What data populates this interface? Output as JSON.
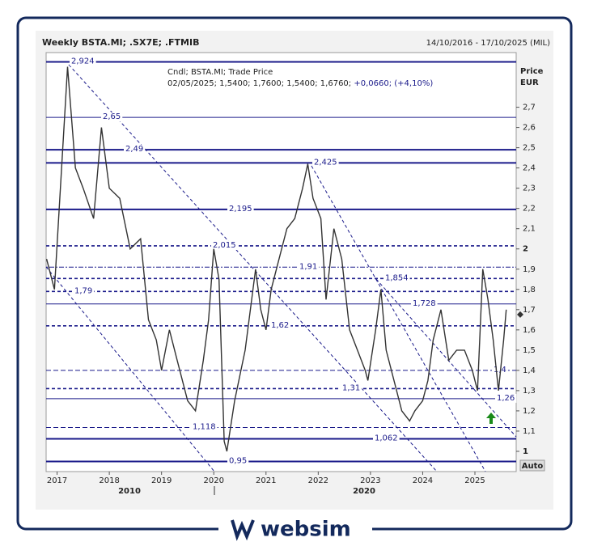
{
  "chart_data": {
    "type": "line",
    "title": "Weekly BSTA.MI; .SX7E; .FTMIB",
    "date_range": "14/10/2016 - 17/10/2025 (MIL)",
    "y_label": "Price",
    "y_unit": "EUR",
    "legend_line1": "Cndl; BSTA.MI; Trade Price",
    "legend_line2": "02/05/2025; 1,5400; 1,7600; 1,5400; 1,6760;",
    "legend_change": "+0,0660; (+4,10%)",
    "last_price": 1.676,
    "auto_label": "Auto",
    "decade_labels": [
      "2010",
      "2020"
    ],
    "brand": "websim",
    "xlim": [
      2016.79,
      2025.79
    ],
    "ylim": [
      0.9,
      2.97
    ],
    "xticks": [
      2017,
      2018,
      2019,
      2020,
      2021,
      2022,
      2023,
      2024,
      2025
    ],
    "yticks": [
      1,
      {
        "value": 1.1,
        "label": "1,1"
      },
      {
        "value": 1.2,
        "label": "1,2"
      },
      {
        "value": 1.3,
        "label": "1,3"
      },
      {
        "value": 1.4,
        "label": "1,4"
      },
      {
        "value": 1.5,
        "label": "1,5"
      },
      {
        "value": 1.6,
        "label": "1,6"
      },
      {
        "value": 1.7,
        "label": "1,7"
      },
      {
        "value": 1.8,
        "label": "1,8"
      },
      {
        "value": 1.9,
        "label": "1,9"
      },
      2,
      {
        "value": 2.1,
        "label": "2,1"
      },
      {
        "value": 2.2,
        "label": "2,2"
      },
      {
        "value": 2.3,
        "label": "2,3"
      },
      {
        "value": 2.4,
        "label": "2,4"
      },
      {
        "value": 2.5,
        "label": "2,5"
      },
      {
        "value": 2.6,
        "label": "2,6"
      },
      {
        "value": 2.7,
        "label": "2,7"
      }
    ],
    "levels": [
      {
        "value": 2.924,
        "label": "2,924",
        "style": "solid"
      },
      {
        "value": 2.65,
        "label": "2,65",
        "style": "thin"
      },
      {
        "value": 2.49,
        "label": "2,49",
        "style": "solid"
      },
      {
        "value": 2.425,
        "label": "2,425",
        "style": "solid"
      },
      {
        "value": 2.195,
        "label": "2,195",
        "style": "solid"
      },
      {
        "value": 2.015,
        "label": "2,015",
        "style": "dashed"
      },
      {
        "value": 1.91,
        "label": "1,91",
        "style": "dotted"
      },
      {
        "value": 1.854,
        "label": "1,854",
        "style": "dashed"
      },
      {
        "value": 1.79,
        "label": "1,79",
        "style": "dashed"
      },
      {
        "value": 1.728,
        "label": "1,728",
        "style": "thin"
      },
      {
        "value": 1.62,
        "label": "1,62",
        "style": "dashed"
      },
      {
        "value": 1.4,
        "label": "1,4",
        "style": "thindash"
      },
      {
        "value": 1.31,
        "label": "1,31",
        "style": "dashed"
      },
      {
        "value": 1.26,
        "label": "1,26",
        "style": "thin"
      },
      {
        "value": 1.118,
        "label": "1,118",
        "style": "thindash"
      },
      {
        "value": 1.062,
        "label": "1,062",
        "style": "solid"
      },
      {
        "value": 0.95,
        "label": "0,95",
        "style": "solid"
      }
    ],
    "series": [
      {
        "name": "BSTA.MI",
        "color": "#333333",
        "x": [
          2016.8,
          2016.95,
          2017.2,
          2017.35,
          2017.5,
          2017.7,
          2017.85,
          2018.0,
          2018.2,
          2018.4,
          2018.6,
          2018.75,
          2018.9,
          2019.0,
          2019.15,
          2019.3,
          2019.5,
          2019.65,
          2019.8,
          2019.9,
          2020.0,
          2020.1,
          2020.2,
          2020.25,
          2020.4,
          2020.6,
          2020.8,
          2020.9,
          2021.0,
          2021.1,
          2021.3,
          2021.4,
          2021.55,
          2021.7,
          2021.8,
          2021.9,
          2022.05,
          2022.15,
          2022.3,
          2022.45,
          2022.6,
          2022.75,
          2022.9,
          2022.95,
          2023.1,
          2023.2,
          2023.3,
          2023.5,
          2023.6,
          2023.75,
          2023.85,
          2024.0,
          2024.1,
          2024.2,
          2024.35,
          2024.5,
          2024.65,
          2024.8,
          2024.95,
          2025.05,
          2025.15,
          2025.25,
          2025.35,
          2025.45,
          2025.55,
          2025.6
        ],
        "values": [
          1.95,
          1.8,
          2.9,
          2.4,
          2.3,
          2.15,
          2.6,
          2.3,
          2.25,
          2.0,
          2.05,
          1.65,
          1.55,
          1.4,
          1.6,
          1.45,
          1.25,
          1.2,
          1.45,
          1.65,
          2.0,
          1.85,
          1.05,
          1.0,
          1.25,
          1.5,
          1.9,
          1.7,
          1.6,
          1.8,
          2.0,
          2.1,
          2.15,
          2.3,
          2.42,
          2.25,
          2.15,
          1.75,
          2.1,
          1.95,
          1.6,
          1.5,
          1.4,
          1.35,
          1.6,
          1.8,
          1.5,
          1.3,
          1.2,
          1.15,
          1.2,
          1.25,
          1.35,
          1.55,
          1.7,
          1.45,
          1.5,
          1.5,
          1.4,
          1.3,
          1.9,
          1.75,
          1.55,
          1.3,
          1.55,
          1.7
        ]
      }
    ]
  }
}
